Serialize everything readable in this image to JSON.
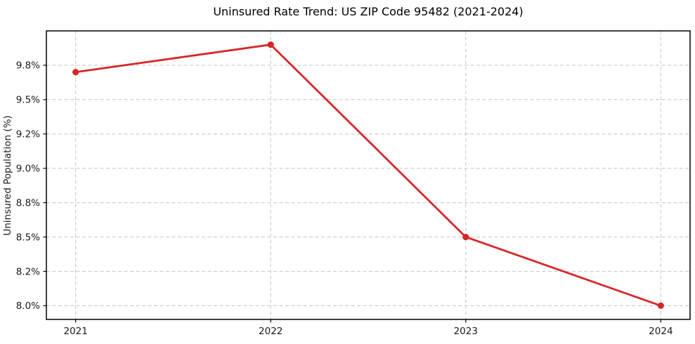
{
  "chart_data": {
    "type": "line",
    "title": "Uninsured Rate Trend: US ZIP Code 95482 (2021-2024)",
    "xlabel": "",
    "ylabel": "Uninsured Population (%)",
    "x": [
      2021,
      2022,
      2023,
      2024
    ],
    "values": [
      9.7,
      9.9,
      8.5,
      8.0
    ],
    "value_unit": "%",
    "xlim": [
      2020.85,
      2024.15
    ],
    "ylim": [
      7.9,
      10.0
    ],
    "xticks": {
      "values": [
        2021,
        2022,
        2023,
        2024
      ],
      "labels": [
        "2021",
        "2022",
        "2023",
        "2024"
      ]
    },
    "yticks": {
      "values": [
        8.0,
        8.25,
        8.5,
        8.75,
        9.0,
        9.25,
        9.5,
        9.75
      ],
      "labels": [
        "8.0%",
        "8.2%",
        "8.5%",
        "8.8%",
        "9.0%",
        "9.2%",
        "9.5%",
        "9.8%"
      ]
    },
    "grid": true,
    "grid_style": "dashed",
    "legend": false,
    "colors": {
      "line": "#d62728",
      "marker": "#d62728",
      "grid": "#c9c9c9",
      "spine": "#000000",
      "tick_label": "#1a1a1a",
      "title": "#000000",
      "background": "#ffffff"
    }
  }
}
